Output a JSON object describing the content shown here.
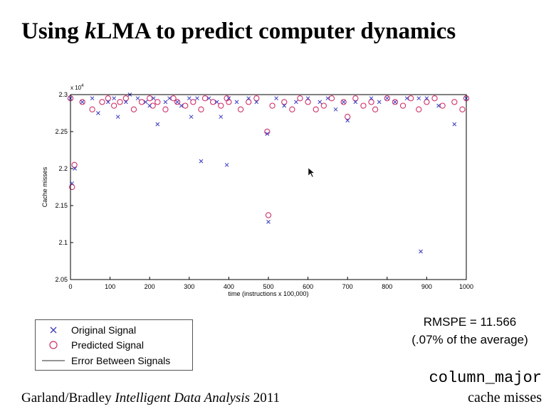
{
  "slide": {
    "title_prefix": "Using ",
    "title_italic": "k",
    "title_suffix": "LMA to predict computer dynamics",
    "rmspe_line1": "RMSPE = 11.566",
    "rmspe_line2": "(.07% of the average)",
    "footer_authors": "Garland/Bradley ",
    "footer_journal": "Intelligent Data Analysis",
    "footer_year": " 2011",
    "tag_code": "column_major",
    "tag_sub": "cache misses"
  },
  "colors": {
    "original": "#3a3ac0",
    "predicted": "#d0306a",
    "error": "#555555"
  },
  "chart_data": {
    "type": "scatter",
    "title": "",
    "xlabel": "time (instructions x 100,000)",
    "ylabel": "Cache misses",
    "xlim": [
      0,
      1000
    ],
    "ylim": [
      20500,
      23000
    ],
    "y_exponent_label": "x 10",
    "y_exponent_power": "4",
    "xticks": [
      0,
      100,
      200,
      300,
      400,
      500,
      600,
      700,
      800,
      900,
      1000
    ],
    "xtick_labels": [
      "0",
      "100",
      "200",
      "300",
      "400",
      "500",
      "600",
      "700",
      "800",
      "900",
      "1000"
    ],
    "yticks": [
      20500,
      21000,
      21500,
      22000,
      22500,
      23000
    ],
    "ytick_labels": [
      "2.05",
      "2.1",
      "2.15",
      "2.2",
      "2.25",
      "2.3"
    ],
    "grid": false,
    "legend_position": "below-left",
    "legend": [
      "Original Signal",
      "Predicted Signal",
      "Error Between Signals"
    ],
    "series": [
      {
        "name": "Original Signal",
        "marker": "x",
        "x": [
          0,
          4,
          11,
          30,
          55,
          70,
          95,
          110,
          120,
          140,
          150,
          170,
          190,
          200,
          210,
          220,
          240,
          250,
          270,
          280,
          300,
          305,
          320,
          330,
          350,
          370,
          380,
          395,
          400,
          420,
          450,
          470,
          497,
          500,
          520,
          540,
          570,
          600,
          630,
          650,
          670,
          690,
          700,
          720,
          760,
          780,
          800,
          820,
          850,
          880,
          885,
          900,
          930,
          970,
          1000
        ],
        "y": [
          22950,
          21800,
          22000,
          22900,
          22950,
          22750,
          22900,
          22950,
          22700,
          22900,
          23000,
          22950,
          22900,
          22850,
          22950,
          22600,
          22900,
          22950,
          22900,
          22850,
          22950,
          22700,
          22950,
          22100,
          22950,
          22900,
          22700,
          22050,
          22950,
          22900,
          22950,
          22900,
          22470,
          21280,
          22950,
          22850,
          22900,
          22950,
          22900,
          22950,
          22800,
          22900,
          22650,
          22900,
          22950,
          22900,
          22950,
          22900,
          22950,
          22950,
          20880,
          22950,
          22850,
          22600,
          22950
        ]
      },
      {
        "name": "Predicted Signal",
        "marker": "o",
        "x": [
          0,
          4,
          10,
          30,
          55,
          80,
          95,
          110,
          125,
          140,
          160,
          180,
          200,
          208,
          220,
          240,
          260,
          270,
          290,
          310,
          330,
          340,
          360,
          380,
          395,
          400,
          430,
          450,
          470,
          497,
          500,
          510,
          540,
          560,
          580,
          600,
          620,
          640,
          660,
          690,
          700,
          720,
          740,
          760,
          770,
          800,
          820,
          840,
          860,
          880,
          900,
          920,
          940,
          970,
          990,
          1000
        ],
        "y": [
          22950,
          21750,
          22050,
          22900,
          22800,
          22900,
          22950,
          22850,
          22900,
          22950,
          22800,
          22900,
          22950,
          22850,
          22900,
          22800,
          22950,
          22900,
          22850,
          22900,
          22800,
          22950,
          22900,
          22850,
          22950,
          22900,
          22800,
          22900,
          22950,
          22500,
          21370,
          22850,
          22900,
          22800,
          22950,
          22900,
          22800,
          22850,
          22950,
          22900,
          22700,
          22950,
          22850,
          22900,
          22800,
          22950,
          22900,
          22850,
          22950,
          22800,
          22900,
          22950,
          22850,
          22900,
          22800,
          22950
        ]
      }
    ]
  }
}
